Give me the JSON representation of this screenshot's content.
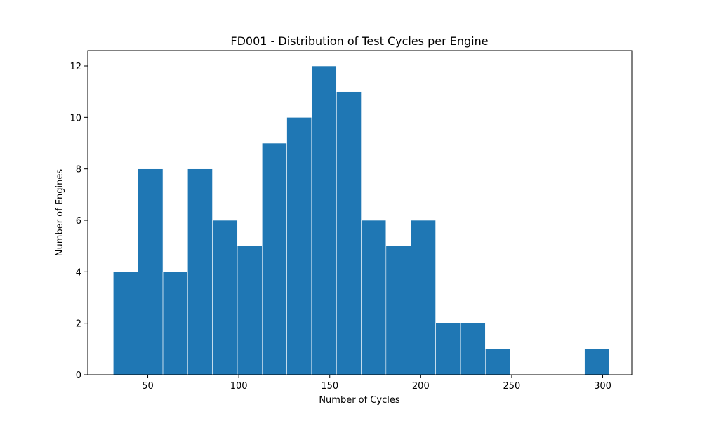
{
  "chart_data": {
    "type": "bar",
    "title": "FD001 - Distribution of Test Cycles per Engine",
    "xlabel": "Number of Cycles",
    "ylabel": "Number of Engines",
    "xlim": [
      17,
      316
    ],
    "ylim": [
      0,
      12.6
    ],
    "x_ticks": [
      50,
      100,
      150,
      200,
      250,
      300
    ],
    "y_ticks": [
      0,
      2,
      4,
      6,
      8,
      10,
      12
    ],
    "bins": [
      {
        "start": 31.0,
        "end": 44.6,
        "value": 4
      },
      {
        "start": 44.6,
        "end": 58.3,
        "value": 8
      },
      {
        "start": 58.3,
        "end": 71.9,
        "value": 4
      },
      {
        "start": 71.9,
        "end": 85.5,
        "value": 8
      },
      {
        "start": 85.5,
        "end": 99.2,
        "value": 6
      },
      {
        "start": 99.2,
        "end": 112.8,
        "value": 5
      },
      {
        "start": 112.8,
        "end": 126.4,
        "value": 9
      },
      {
        "start": 126.4,
        "end": 140.0,
        "value": 10
      },
      {
        "start": 140.0,
        "end": 153.7,
        "value": 12
      },
      {
        "start": 153.7,
        "end": 167.3,
        "value": 11
      },
      {
        "start": 167.3,
        "end": 180.9,
        "value": 6
      },
      {
        "start": 180.9,
        "end": 194.6,
        "value": 5
      },
      {
        "start": 194.6,
        "end": 208.2,
        "value": 6
      },
      {
        "start": 208.2,
        "end": 221.8,
        "value": 2
      },
      {
        "start": 221.8,
        "end": 235.5,
        "value": 2
      },
      {
        "start": 235.5,
        "end": 249.1,
        "value": 1
      },
      {
        "start": 249.1,
        "end": 262.7,
        "value": 0
      },
      {
        "start": 262.7,
        "end": 276.4,
        "value": 0
      },
      {
        "start": 276.4,
        "end": 290.0,
        "value": 0
      },
      {
        "start": 290.0,
        "end": 303.6,
        "value": 1
      }
    ],
    "grid": false,
    "colors": {
      "bar": "#1f77b4",
      "bar_edge": "#ffffff",
      "axis": "#000000"
    }
  }
}
